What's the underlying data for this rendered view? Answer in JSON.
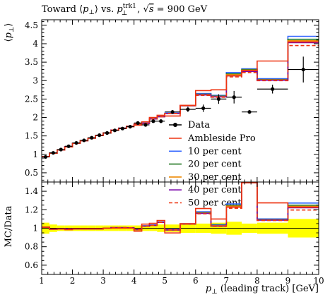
{
  "chart_data": {
    "type": "line",
    "title": "Toward ⟨p⊥⟩ vs. p⊥trk1, √s = 900 GeV",
    "title_parts": {
      "prefix": "Toward ⟨",
      "p": "p",
      "perp": "⊥",
      "mid": "⟩ vs. ",
      "trk_sup": "trk1",
      "comma": ", √",
      "s": "s",
      "suffix": " = 900 GeV"
    },
    "ylabel": "⟨p⊥⟩",
    "ylabel_parts": {
      "open": "⟨",
      "p": "p",
      "perp": "⊥",
      "close": "⟩"
    },
    "ratio_ylabel": "MC/Data",
    "xlabel": "p⊥ (leading track) [GeV]",
    "xlabel_parts": {
      "p": "p",
      "perp": "⊥",
      "rest": " (leading track) [GeV]"
    },
    "xlim": [
      1,
      10
    ],
    "ylim": [
      0.25,
      4.65
    ],
    "ratio_ylim": [
      0.5,
      1.5
    ],
    "xticks": [
      1,
      2,
      3,
      4,
      5,
      6,
      7,
      8,
      9,
      10
    ],
    "yticks": [
      0.5,
      1,
      1.5,
      2,
      2.5,
      3,
      3.5,
      4,
      4.5
    ],
    "ratio_yticks": [
      0.6,
      0.8,
      1,
      1.2,
      1.4
    ],
    "legend_position": "lower-right",
    "edges": [
      1,
      1.25,
      1.5,
      1.75,
      2,
      2.25,
      2.5,
      2.75,
      3,
      3.25,
      3.5,
      3.75,
      4,
      4.25,
      4.5,
      4.75,
      5,
      5.5,
      6,
      6.5,
      7,
      7.5,
      8,
      9,
      10
    ],
    "data": {
      "name": "Data",
      "x": [
        1.125,
        1.375,
        1.625,
        1.875,
        2.125,
        2.375,
        2.625,
        2.875,
        3.125,
        3.375,
        3.625,
        3.875,
        4.125,
        4.375,
        4.625,
        4.875,
        5.25,
        5.75,
        6.25,
        6.75,
        7.25,
        7.75,
        8.5,
        9.5
      ],
      "y": [
        0.93,
        1.04,
        1.13,
        1.22,
        1.31,
        1.38,
        1.45,
        1.52,
        1.58,
        1.65,
        1.7,
        1.75,
        1.85,
        1.8,
        1.9,
        1.9,
        2.15,
        2.22,
        2.25,
        2.5,
        2.55,
        2.15,
        2.77,
        3.3
      ],
      "yerr": [
        0.01,
        0.01,
        0.01,
        0.01,
        0.01,
        0.01,
        0.01,
        0.02,
        0.02,
        0.02,
        0.02,
        0.03,
        0.03,
        0.04,
        0.04,
        0.05,
        0.05,
        0.07,
        0.1,
        0.13,
        0.17,
        0.05,
        0.12,
        0.35
      ],
      "ratio_band": [
        0.06,
        0.04,
        0.03,
        0.03,
        0.03,
        0.03,
        0.03,
        0.03,
        0.03,
        0.03,
        0.03,
        0.03,
        0.03,
        0.03,
        0.03,
        0.04,
        0.04,
        0.05,
        0.05,
        0.06,
        0.07,
        0.05,
        0.06,
        0.1
      ]
    },
    "series": [
      {
        "name": "Ambleside Pro",
        "color": "#ee3311",
        "dashed": false,
        "values": [
          0.94,
          1.03,
          1.12,
          1.2,
          1.3,
          1.37,
          1.44,
          1.51,
          1.58,
          1.65,
          1.7,
          1.75,
          1.79,
          1.88,
          2.0,
          2.06,
          2.04,
          2.33,
          2.73,
          2.75,
          3.13,
          3.27,
          3.53,
          4.05
        ]
      },
      {
        "name": "10 per cent",
        "color": "#3366ff",
        "dashed": false,
        "values": [
          0.94,
          1.03,
          1.12,
          1.21,
          1.3,
          1.37,
          1.44,
          1.51,
          1.58,
          1.66,
          1.71,
          1.76,
          1.82,
          1.85,
          1.97,
          2.03,
          2.12,
          2.33,
          2.65,
          2.6,
          3.22,
          3.32,
          3.05,
          4.2
        ]
      },
      {
        "name": "20 per cent",
        "color": "#207720",
        "dashed": false,
        "values": [
          0.94,
          1.03,
          1.12,
          1.21,
          1.3,
          1.37,
          1.44,
          1.51,
          1.58,
          1.66,
          1.71,
          1.76,
          1.82,
          1.84,
          1.96,
          2.02,
          2.11,
          2.32,
          2.63,
          2.58,
          3.18,
          3.3,
          3.03,
          4.12
        ]
      },
      {
        "name": "30 per cent",
        "color": "#ee8800",
        "dashed": false,
        "values": [
          0.94,
          1.03,
          1.12,
          1.21,
          1.3,
          1.37,
          1.44,
          1.51,
          1.58,
          1.66,
          1.71,
          1.76,
          1.82,
          1.84,
          1.96,
          2.02,
          2.11,
          2.32,
          2.62,
          2.57,
          3.16,
          3.28,
          3.02,
          4.08
        ]
      },
      {
        "name": "40 per cent",
        "color": "#7700aa",
        "dashed": false,
        "values": [
          0.94,
          1.03,
          1.12,
          1.21,
          1.3,
          1.37,
          1.44,
          1.51,
          1.58,
          1.66,
          1.71,
          1.76,
          1.82,
          1.84,
          1.96,
          2.02,
          2.11,
          2.32,
          2.61,
          2.56,
          3.13,
          3.25,
          3.01,
          4.03
        ]
      },
      {
        "name": "50 per cent",
        "color": "#ee3311",
        "dashed": true,
        "values": [
          0.94,
          1.03,
          1.12,
          1.21,
          1.3,
          1.37,
          1.44,
          1.51,
          1.58,
          1.66,
          1.71,
          1.76,
          1.82,
          1.84,
          1.96,
          2.02,
          2.11,
          2.32,
          2.6,
          2.55,
          3.1,
          3.22,
          3.0,
          3.95
        ]
      }
    ]
  }
}
